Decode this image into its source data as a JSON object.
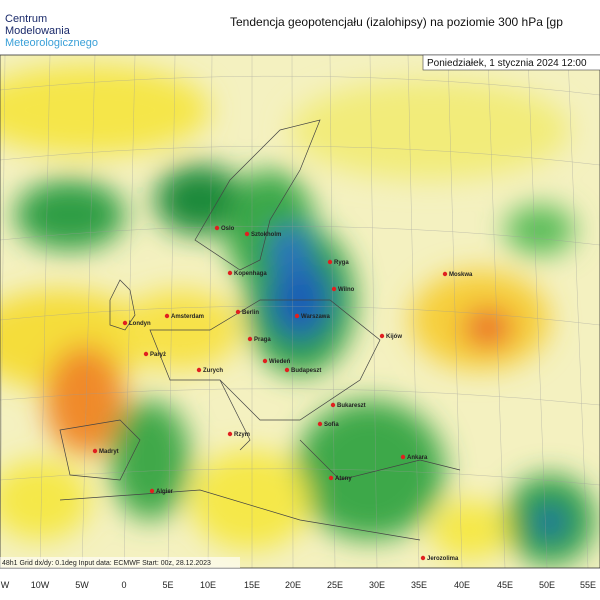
{
  "header": {
    "logo": [
      "Centrum",
      "Modelowania",
      "Meteorologicznego"
    ],
    "title": "Tendencja geopotencjału (izalohipsy) na poziomie 300 hPa  [gp",
    "date_label": "Poniedziałek, 1 stycznia 2024 12:00"
  },
  "footer": {
    "info": "48h1  Grid dx/dy: 0.1deg  Input data: ECMWF  Start: 00z, 28.12.2023"
  },
  "axis": {
    "lon_labels": [
      "W",
      "10W",
      "5W",
      "0",
      "5E",
      "10E",
      "15E",
      "20E",
      "25E",
      "30E",
      "35E",
      "40E",
      "45E",
      "50E",
      "55E"
    ]
  },
  "cities": [
    "Oslo",
    "Sztokholm",
    "Kopenhaga",
    "Ryga",
    "Wilno",
    "Moskwa",
    "Amsterdam",
    "Londyn",
    "Berlin",
    "Warszawa",
    "Kijów",
    "Paryż",
    "Praga",
    "Wiedeń",
    "Budapeszt",
    "Zurych",
    "Rzym",
    "Bukareszt",
    "Sofia",
    "Madryt",
    "Algier",
    "Ankara",
    "Ateny",
    "Jerozolima"
  ]
}
